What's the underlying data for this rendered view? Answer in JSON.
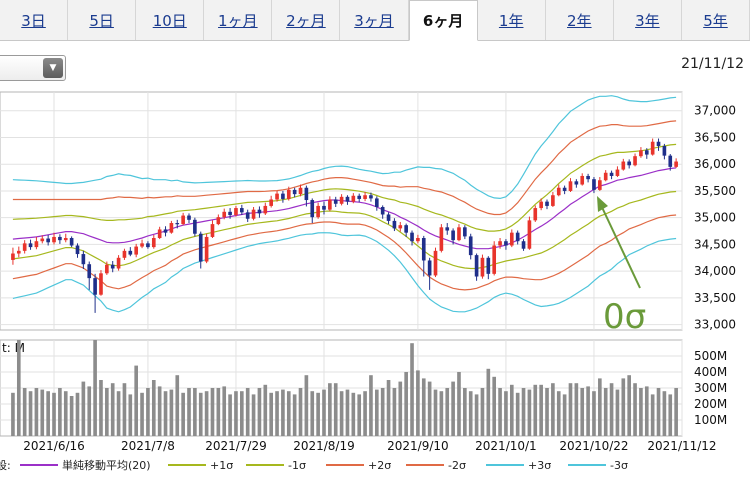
{
  "tabs": [
    {
      "label": "3日",
      "active": false
    },
    {
      "label": "5日",
      "active": false
    },
    {
      "label": "10日",
      "active": false
    },
    {
      "label": "1ヶ月",
      "active": false
    },
    {
      "label": "2ヶ月",
      "active": false
    },
    {
      "label": "3ヶ月",
      "active": false
    },
    {
      "label": "6ヶ月",
      "active": true
    },
    {
      "label": "1年",
      "active": false
    },
    {
      "label": "2年",
      "active": false
    },
    {
      "label": "3年",
      "active": false
    },
    {
      "label": "5年",
      "active": false
    }
  ],
  "chart_meta": {
    "current_date": "21/11/12",
    "annotation": "0σ",
    "volume_unit_label": "t: M"
  },
  "chart_data": {
    "type": "candlestick",
    "price_ticks": [
      37000,
      36500,
      36000,
      35500,
      35000,
      34500,
      34000,
      33500,
      33000
    ],
    "price_tick_labels": [
      "37,000",
      "36,500",
      "36,000",
      "35,500",
      "35,000",
      "34,500",
      "34,000",
      "33,500",
      "33,000"
    ],
    "ylim": [
      32900,
      37350
    ],
    "volume_ticks": [
      500,
      400,
      300,
      200,
      100
    ],
    "volume_tick_labels": [
      "500M",
      "400M",
      "300M",
      "200M",
      "100M"
    ],
    "volume_ylim": [
      0,
      600
    ],
    "x_labels": [
      "2021/6/16",
      "2021/7/8",
      "2021/7/29",
      "2021/8/19",
      "2021/9/10",
      "2021/10/1",
      "2021/10/22",
      "2021/11/12"
    ],
    "x_label_days": [
      7,
      23,
      38,
      53,
      69,
      84,
      99,
      114
    ],
    "grid": true,
    "legend_prefix": "設:",
    "colors": {
      "up": "#e8342c",
      "down": "#1f2f8a",
      "volume": "#8c8c8c",
      "sma": "#9b30c8",
      "sigma1": "#a6b81e",
      "sigma2": "#e06a45",
      "sigma3": "#4fc5db"
    },
    "series": [
      {
        "name": "単純移動平均(20)",
        "color": "#9b30c8",
        "key": "sma"
      },
      {
        "name": "+1σ",
        "color": "#a6b81e",
        "key": "sigma1"
      },
      {
        "name": "-1σ",
        "color": "#a6b81e",
        "key": "sigma1"
      },
      {
        "name": "+2σ",
        "color": "#e06a45",
        "key": "sigma2"
      },
      {
        "name": "-2σ",
        "color": "#e06a45",
        "key": "sigma2"
      },
      {
        "name": "+3σ",
        "color": "#4fc5db",
        "key": "sigma3"
      },
      {
        "name": "-3σ",
        "color": "#4fc5db",
        "key": "sigma3"
      }
    ],
    "sma": [
      34600,
      34610,
      34620,
      34630,
      34640,
      34660,
      34680,
      34700,
      34720,
      34740,
      34740,
      34720,
      34700,
      34660,
      34620,
      34580,
      34540,
      34530,
      34530,
      34540,
      34560,
      34590,
      34620,
      34660,
      34690,
      34720,
      34750,
      34790,
      34830,
      34860,
      34880,
      34900,
      34920,
      34940,
      34960,
      34980,
      35000,
      35020,
      35040,
      35060,
      35080,
      35090,
      35100,
      35110,
      35120,
      35130,
      35150,
      35170,
      35200,
      35230,
      35260,
      35280,
      35300,
      35320,
      35330,
      35330,
      35320,
      35310,
      35300,
      35290,
      35270,
      35240,
      35200,
      35150,
      35110,
      35070,
      35010,
      34960,
      34900,
      34840,
      34770,
      34710,
      34660,
      34620,
      34580,
      34540,
      34500,
      34470,
      34440,
      34420,
      34420,
      34420,
      34440,
      34460,
      34490,
      34530,
      34580,
      34640,
      34710,
      34780,
      34840,
      34910,
      34990,
      35080,
      35160,
      35250,
      35320,
      35390,
      35460,
      35530,
      35590,
      35620,
      35660,
      35700,
      35720,
      35750,
      35770,
      35790,
      35820,
      35850,
      35880,
      35900,
      35920,
      35930
    ],
    "sd": [
      370,
      365,
      360,
      355,
      350,
      340,
      330,
      320,
      310,
      300,
      300,
      310,
      320,
      340,
      360,
      380,
      410,
      420,
      430,
      420,
      410,
      390,
      370,
      360,
      340,
      330,
      320,
      300,
      290,
      270,
      260,
      250,
      245,
      240,
      235,
      230,
      225,
      220,
      215,
      210,
      205,
      200,
      195,
      192,
      190,
      188,
      186,
      185,
      185,
      186,
      190,
      195,
      195,
      200,
      205,
      210,
      215,
      215,
      210,
      205,
      205,
      210,
      215,
      225,
      240,
      260,
      280,
      310,
      340,
      370,
      390,
      410,
      420,
      430,
      430,
      430,
      420,
      410,
      390,
      370,
      350,
      330,
      310,
      300,
      300,
      320,
      350,
      390,
      430,
      470,
      500,
      520,
      540,
      560,
      570,
      580,
      580,
      580,
      580,
      570,
      560,
      550,
      540,
      520,
      500,
      480,
      470,
      460,
      450,
      445,
      440,
      440,
      440,
      440
    ],
    "candles": [
      [
        34210,
        34330,
        34120,
        34440
      ],
      [
        34330,
        34380,
        34260,
        34460
      ],
      [
        34380,
        34520,
        34330,
        34580
      ],
      [
        34520,
        34450,
        34400,
        34590
      ],
      [
        34450,
        34560,
        34410,
        34640
      ],
      [
        34560,
        34610,
        34520,
        34670
      ],
      [
        34610,
        34540,
        34480,
        34680
      ],
      [
        34540,
        34640,
        34500,
        34720
      ],
      [
        34640,
        34580,
        34510,
        34690
      ],
      [
        34580,
        34620,
        34540,
        34700
      ],
      [
        34620,
        34480,
        34450,
        34650
      ],
      [
        34480,
        34320,
        34250,
        34520
      ],
      [
        34320,
        34130,
        34040,
        34380
      ],
      [
        34130,
        33870,
        33650,
        34180
      ],
      [
        33870,
        33560,
        33220,
        33950
      ],
      [
        33560,
        33960,
        33540,
        34020
      ],
      [
        33960,
        34120,
        33930,
        34180
      ],
      [
        34120,
        34050,
        33980,
        34190
      ],
      [
        34050,
        34250,
        34010,
        34300
      ],
      [
        34250,
        34380,
        34210,
        34420
      ],
      [
        34380,
        34310,
        34280,
        34450
      ],
      [
        34310,
        34460,
        34260,
        34510
      ],
      [
        34460,
        34520,
        34430,
        34590
      ],
      [
        34520,
        34450,
        34420,
        34560
      ],
      [
        34450,
        34620,
        34420,
        34680
      ],
      [
        34620,
        34780,
        34600,
        34830
      ],
      [
        34780,
        34720,
        34650,
        34840
      ],
      [
        34720,
        34900,
        34700,
        34940
      ],
      [
        34900,
        34880,
        34800,
        34960
      ],
      [
        34880,
        35040,
        34860,
        35090
      ],
      [
        35040,
        34960,
        34900,
        35080
      ],
      [
        34960,
        34700,
        34650,
        35000
      ],
      [
        34700,
        34180,
        34050,
        34740
      ],
      [
        34180,
        34640,
        34150,
        34700
      ],
      [
        34640,
        34880,
        34620,
        34950
      ],
      [
        34880,
        35010,
        34860,
        35060
      ],
      [
        35010,
        35110,
        34970,
        35170
      ],
      [
        35110,
        35050,
        34980,
        35180
      ],
      [
        35050,
        35180,
        35020,
        35220
      ],
      [
        35180,
        35100,
        35050,
        35240
      ],
      [
        35100,
        34980,
        34920,
        35150
      ],
      [
        34980,
        35150,
        34950,
        35200
      ],
      [
        35150,
        35080,
        35000,
        35210
      ],
      [
        35080,
        35220,
        35050,
        35280
      ],
      [
        35220,
        35340,
        35190,
        35410
      ],
      [
        35340,
        35450,
        35300,
        35500
      ],
      [
        35450,
        35350,
        35280,
        35500
      ],
      [
        35350,
        35520,
        35320,
        35580
      ],
      [
        35520,
        35440,
        35380,
        35560
      ],
      [
        35440,
        35560,
        35400,
        35620
      ],
      [
        35560,
        35330,
        35210,
        35600
      ],
      [
        35330,
        35010,
        34900,
        35360
      ],
      [
        35010,
        35220,
        34980,
        35280
      ],
      [
        35220,
        35150,
        35060,
        35300
      ],
      [
        35150,
        35340,
        35120,
        35400
      ],
      [
        35340,
        35260,
        35200,
        35390
      ],
      [
        35260,
        35390,
        35230,
        35440
      ],
      [
        35390,
        35300,
        35240,
        35420
      ],
      [
        35300,
        35410,
        35270,
        35460
      ],
      [
        35410,
        35350,
        35290,
        35450
      ],
      [
        35350,
        35420,
        35310,
        35480
      ],
      [
        35420,
        35360,
        35300,
        35470
      ],
      [
        35360,
        35200,
        35130,
        35400
      ],
      [
        35200,
        35060,
        34980,
        35230
      ],
      [
        35060,
        34940,
        34880,
        35100
      ],
      [
        34940,
        34800,
        34750,
        34990
      ],
      [
        34800,
        34860,
        34740,
        34920
      ],
      [
        34860,
        34720,
        34640,
        34890
      ],
      [
        34720,
        34560,
        34480,
        34760
      ],
      [
        34560,
        34620,
        34520,
        34680
      ],
      [
        34620,
        34200,
        33900,
        34660
      ],
      [
        34200,
        33920,
        33650,
        34250
      ],
      [
        33920,
        34380,
        33890,
        34440
      ],
      [
        34380,
        34820,
        34350,
        34880
      ],
      [
        34820,
        34760,
        34680,
        34900
      ],
      [
        34760,
        34580,
        34500,
        34800
      ],
      [
        34580,
        34820,
        34560,
        34880
      ],
      [
        34820,
        34650,
        34600,
        34860
      ],
      [
        34650,
        34300,
        34220,
        34700
      ],
      [
        34300,
        33900,
        33820,
        34330
      ],
      [
        33900,
        34250,
        33860,
        34310
      ],
      [
        34250,
        33950,
        33850,
        34280
      ],
      [
        33950,
        34480,
        33920,
        34560
      ],
      [
        34480,
        34560,
        34420,
        34620
      ],
      [
        34560,
        34480,
        34400,
        34600
      ],
      [
        34480,
        34720,
        34450,
        34780
      ],
      [
        34720,
        34560,
        34500,
        34760
      ],
      [
        34560,
        34420,
        34380,
        34600
      ],
      [
        34420,
        34950,
        34400,
        35020
      ],
      [
        34950,
        35180,
        34920,
        35230
      ],
      [
        35180,
        35300,
        35140,
        35360
      ],
      [
        35300,
        35220,
        35160,
        35340
      ],
      [
        35220,
        35420,
        35200,
        35480
      ],
      [
        35420,
        35560,
        35400,
        35620
      ],
      [
        35560,
        35500,
        35440,
        35600
      ],
      [
        35500,
        35680,
        35480,
        35740
      ],
      [
        35680,
        35620,
        35560,
        35720
      ],
      [
        35620,
        35780,
        35600,
        35830
      ],
      [
        35780,
        35720,
        35660,
        35820
      ],
      [
        35720,
        35520,
        35460,
        35760
      ],
      [
        35520,
        35700,
        35500,
        35760
      ],
      [
        35700,
        35840,
        35680,
        35890
      ],
      [
        35840,
        35780,
        35720,
        35880
      ],
      [
        35780,
        35900,
        35760,
        35960
      ],
      [
        35900,
        36050,
        35880,
        36100
      ],
      [
        36050,
        35980,
        35920,
        36090
      ],
      [
        35980,
        36150,
        35960,
        36200
      ],
      [
        36150,
        36260,
        36120,
        36320
      ],
      [
        36260,
        36180,
        36100,
        36300
      ],
      [
        36180,
        36420,
        36160,
        36480
      ],
      [
        36420,
        36340,
        36250,
        36480
      ],
      [
        36340,
        36160,
        36090,
        36380
      ],
      [
        36160,
        35950,
        35880,
        36190
      ],
      [
        35950,
        36050,
        35930,
        36110
      ]
    ],
    "volume": [
      270,
      600,
      300,
      280,
      300,
      290,
      280,
      270,
      300,
      280,
      250,
      270,
      340,
      310,
      600,
      350,
      300,
      330,
      280,
      330,
      260,
      440,
      270,
      300,
      350,
      310,
      280,
      290,
      380,
      270,
      300,
      300,
      270,
      280,
      300,
      300,
      310,
      260,
      280,
      280,
      300,
      260,
      300,
      320,
      270,
      280,
      290,
      280,
      260,
      300,
      380,
      280,
      270,
      290,
      330,
      330,
      280,
      290,
      270,
      260,
      280,
      380,
      290,
      300,
      350,
      300,
      340,
      400,
      580,
      410,
      360,
      340,
      290,
      280,
      300,
      340,
      400,
      300,
      280,
      260,
      300,
      420,
      370,
      300,
      280,
      320,
      270,
      300,
      290,
      320,
      320,
      300,
      330,
      280,
      260,
      330,
      330,
      300,
      310,
      280,
      360,
      300,
      330,
      290,
      360,
      380,
      330,
      300,
      310,
      260,
      300,
      280,
      260,
      300
    ]
  }
}
